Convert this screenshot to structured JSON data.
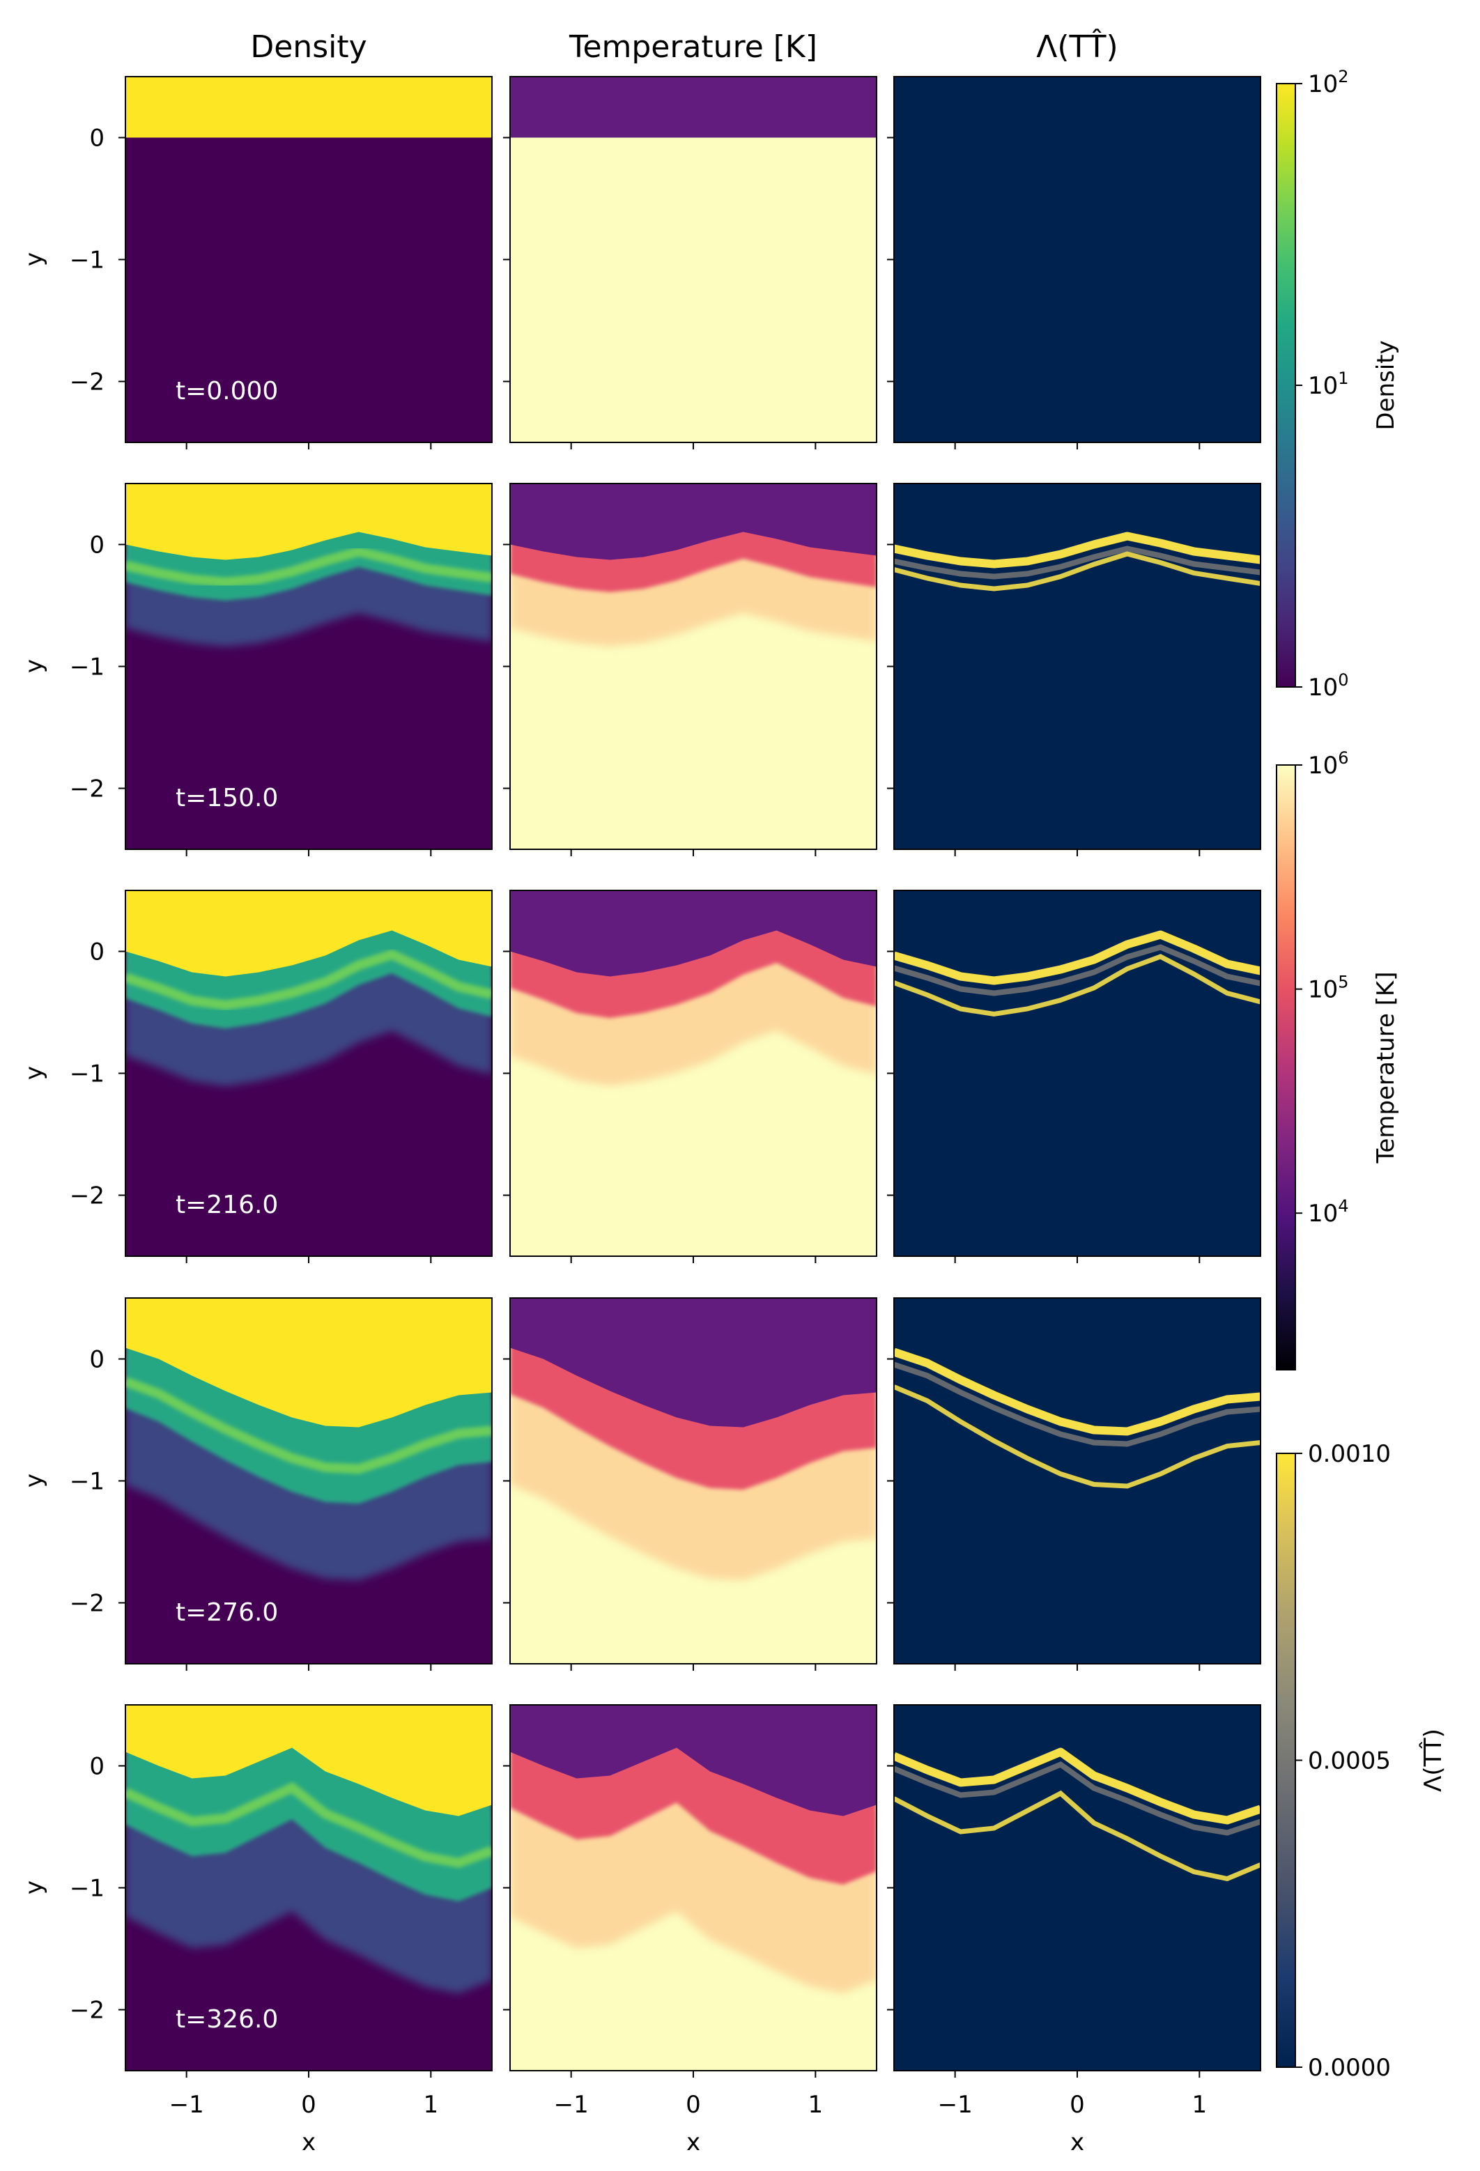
{
  "chart_data": {
    "type": "heatmap",
    "layout": "5 rows x 3 columns of 2D field panels (simulation snapshots)",
    "columns": [
      {
        "id": "density",
        "title": "Density",
        "colormap": "viridis",
        "scale": "log",
        "range": [
          1,
          100
        ]
      },
      {
        "id": "temperature",
        "title": "Temperature [K]",
        "colormap": "magma",
        "scale": "log",
        "range": [
          2000,
          1000000
        ]
      },
      {
        "id": "lambda",
        "title": "Λ(TT̂)",
        "colormap": "cividis",
        "scale": "linear",
        "range": [
          0,
          0.001
        ]
      }
    ],
    "rows": [
      {
        "time_label": "t=0.000",
        "time": 0.0
      },
      {
        "time_label": "t=150.0",
        "time": 150.0
      },
      {
        "time_label": "t=216.0",
        "time": 216.0
      },
      {
        "time_label": "t=276.0",
        "time": 276.0
      },
      {
        "time_label": "t=326.0",
        "time": 326.0
      }
    ],
    "xlabel": "x",
    "ylabel": "y",
    "xlim": [
      -1.5,
      1.5
    ],
    "ylim": [
      -2.5,
      0.5
    ],
    "xticks": [
      -1,
      0,
      1
    ],
    "xtick_labels": [
      "−1",
      "0",
      "1"
    ],
    "yticks": [
      0,
      -1,
      -2
    ],
    "ytick_labels": [
      "0",
      "−1",
      "−2"
    ],
    "colorbars": [
      {
        "label": "Density",
        "ticks": [
          1,
          10,
          100
        ],
        "tick_labels": [
          {
            "base": "10",
            "exp": "0"
          },
          {
            "base": "10",
            "exp": "1"
          },
          {
            "base": "10",
            "exp": "2"
          }
        ]
      },
      {
        "label": "Temperature [K]",
        "ticks": [
          10000,
          100000,
          1000000
        ],
        "tick_labels": [
          {
            "base": "10",
            "exp": "4"
          },
          {
            "base": "10",
            "exp": "5"
          },
          {
            "base": "10",
            "exp": "6"
          }
        ]
      },
      {
        "label": "Λ(TT̂)",
        "ticks": [
          0,
          0.0005,
          0.001
        ],
        "tick_labels": [
          "0.0000",
          "0.0005",
          "0.0010"
        ]
      }
    ]
  },
  "colors": {
    "density_cold": "#fde725",
    "density_hot": "#440154",
    "density_mix": "#26a784",
    "density_mix_light": "#6ccd5a",
    "density_mix_dark": "#3b528b",
    "temp_cold": "#611c7e",
    "temp_hot": "#fcfdbf",
    "temp_mix": "#e8526b",
    "temp_mix_light": "#fdcf95",
    "lambda_bg": "#00224e",
    "lambda_line": "#f5e04a",
    "lambda_faint": "#7c7b78"
  }
}
